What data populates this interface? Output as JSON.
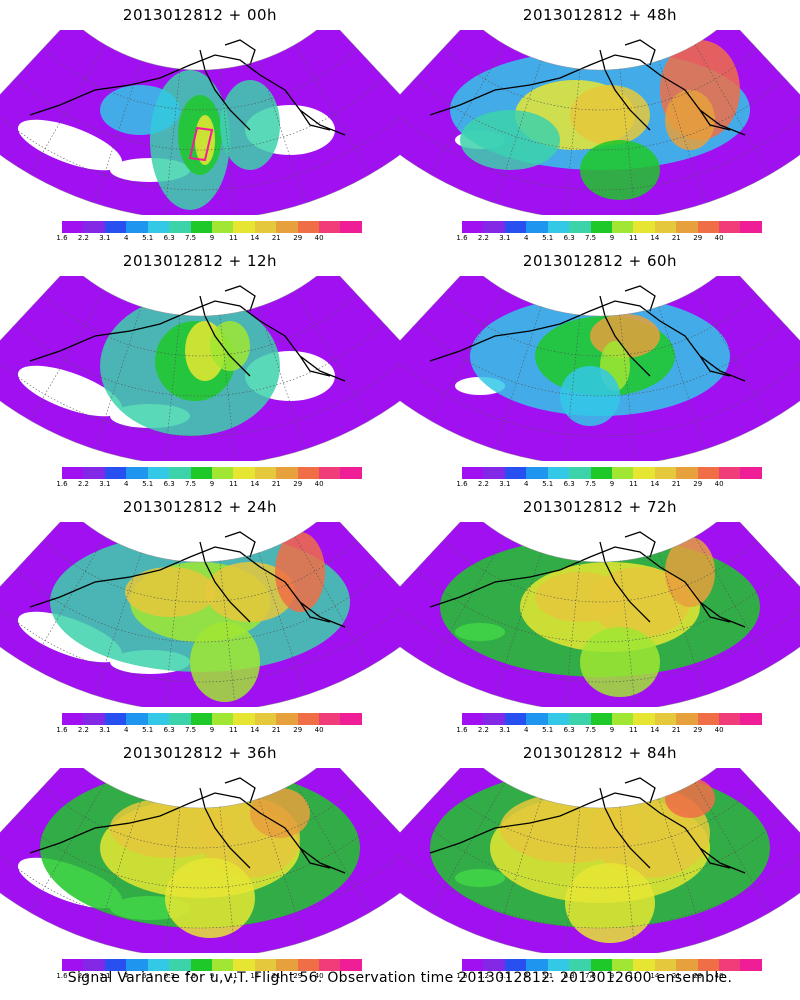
{
  "colorbar": {
    "colors": [
      "#a010f0",
      "#8228e6",
      "#2850f0",
      "#1e96f0",
      "#32c8e6",
      "#3cd2aa",
      "#1ec828",
      "#a0e632",
      "#e6e632",
      "#e6c83c",
      "#e6a03c",
      "#f06e46",
      "#f03c78",
      "#f01e96"
    ],
    "tick_labels": [
      "1.6",
      "2.2",
      "3.1",
      "4",
      "5.1",
      "6.3",
      "7.5",
      "9",
      "11",
      "14",
      "21",
      "29",
      "40"
    ]
  },
  "panels": [
    {
      "id": "p00",
      "title": "2013012812 + 00h",
      "level": 0
    },
    {
      "id": "p48",
      "title": "2013012812 + 48h",
      "level": 4
    },
    {
      "id": "p12",
      "title": "2013012812 + 12h",
      "level": 1
    },
    {
      "id": "p60",
      "title": "2013012812 + 60h",
      "level": 5
    },
    {
      "id": "p24",
      "title": "2013012812 + 24h",
      "level": 2
    },
    {
      "id": "p72",
      "title": "2013012812 + 72h",
      "level": 6
    },
    {
      "id": "p36",
      "title": "2013012812 + 36h",
      "level": 3
    },
    {
      "id": "p84",
      "title": "2013012812 + 84h",
      "level": 7
    }
  ],
  "caption": "Signal Variance for u,v,T. Flight 56. Observation time 2013012812. 2013012600 ensemble."
}
